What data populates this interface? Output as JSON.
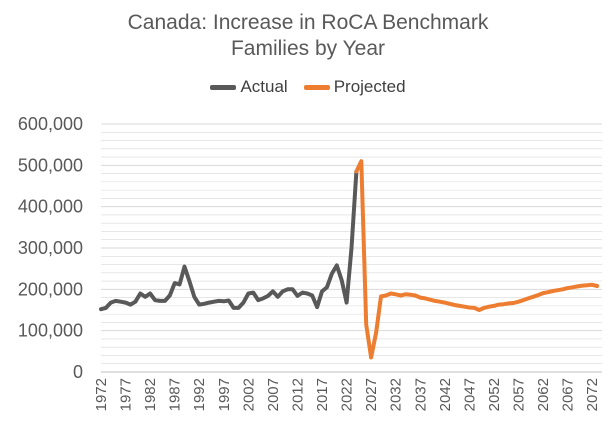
{
  "chart_data": {
    "type": "line",
    "title_lines": [
      "Canada: Increase in RoCA Benchmark",
      "Families by Year"
    ],
    "legend": [
      "Actual",
      "Projected"
    ],
    "colors": {
      "Actual": "#595959",
      "Projected": "#ED7D31",
      "grid": "#D9D9D9"
    },
    "ylim": [
      0,
      600000
    ],
    "y_ticks": [
      0,
      100000,
      200000,
      300000,
      400000,
      500000,
      600000
    ],
    "y_tick_labels": [
      "0",
      "100,000",
      "200,000",
      "300,000",
      "400,000",
      "500,000",
      "600,000"
    ],
    "x_range": [
      1972,
      2074
    ],
    "x_tick_labels": [
      "1972",
      "1977",
      "1982",
      "1987",
      "1992",
      "1997",
      "2002",
      "2007",
      "2012",
      "2017",
      "2022",
      "2027",
      "2032",
      "2037",
      "2042",
      "2047",
      "2052",
      "2057",
      "2062",
      "2067",
      "2072"
    ],
    "series": [
      {
        "name": "Actual",
        "x": [
          1972,
          1973,
          1974,
          1975,
          1976,
          1977,
          1978,
          1979,
          1980,
          1981,
          1982,
          1983,
          1984,
          1985,
          1986,
          1987,
          1988,
          1989,
          1990,
          1991,
          1992,
          1993,
          1994,
          1995,
          1996,
          1997,
          1998,
          1999,
          2000,
          2001,
          2002,
          2003,
          2004,
          2005,
          2006,
          2007,
          2008,
          2009,
          2010,
          2011,
          2012,
          2013,
          2014,
          2015,
          2016,
          2017,
          2018,
          2019,
          2020,
          2021,
          2022,
          2023,
          2024
        ],
        "values": [
          152000,
          155000,
          168000,
          172000,
          170000,
          168000,
          163000,
          170000,
          190000,
          182000,
          190000,
          174000,
          172000,
          172000,
          185000,
          215000,
          212000,
          255000,
          220000,
          182000,
          163000,
          165000,
          168000,
          170000,
          172000,
          171000,
          173000,
          155000,
          155000,
          168000,
          190000,
          192000,
          174000,
          178000,
          184000,
          195000,
          182000,
          195000,
          200000,
          200000,
          184000,
          192000,
          190000,
          185000,
          157000,
          195000,
          205000,
          238000,
          258000,
          222000,
          168000,
          300000,
          485000
        ]
      },
      {
        "name": "Projected",
        "x": [
          2024,
          2025,
          2026,
          2027,
          2028,
          2029,
          2030,
          2031,
          2032,
          2033,
          2034,
          2035,
          2036,
          2037,
          2038,
          2039,
          2040,
          2041,
          2042,
          2043,
          2044,
          2045,
          2046,
          2047,
          2048,
          2049,
          2050,
          2051,
          2052,
          2053,
          2054,
          2055,
          2056,
          2057,
          2058,
          2059,
          2060,
          2061,
          2062,
          2063,
          2064,
          2065,
          2066,
          2067,
          2068,
          2069,
          2070,
          2071,
          2072,
          2073
        ],
        "values": [
          485000,
          510000,
          115000,
          35000,
          95000,
          183000,
          185000,
          190000,
          188000,
          185000,
          188000,
          187000,
          185000,
          180000,
          178000,
          175000,
          172000,
          170000,
          168000,
          165000,
          162000,
          160000,
          158000,
          156000,
          155000,
          150000,
          155000,
          158000,
          160000,
          163000,
          164000,
          166000,
          167000,
          170000,
          174000,
          178000,
          182000,
          186000,
          191000,
          193000,
          196000,
          198000,
          200000,
          203000,
          205000,
          207000,
          209000,
          210000,
          211000,
          208000
        ]
      }
    ]
  }
}
